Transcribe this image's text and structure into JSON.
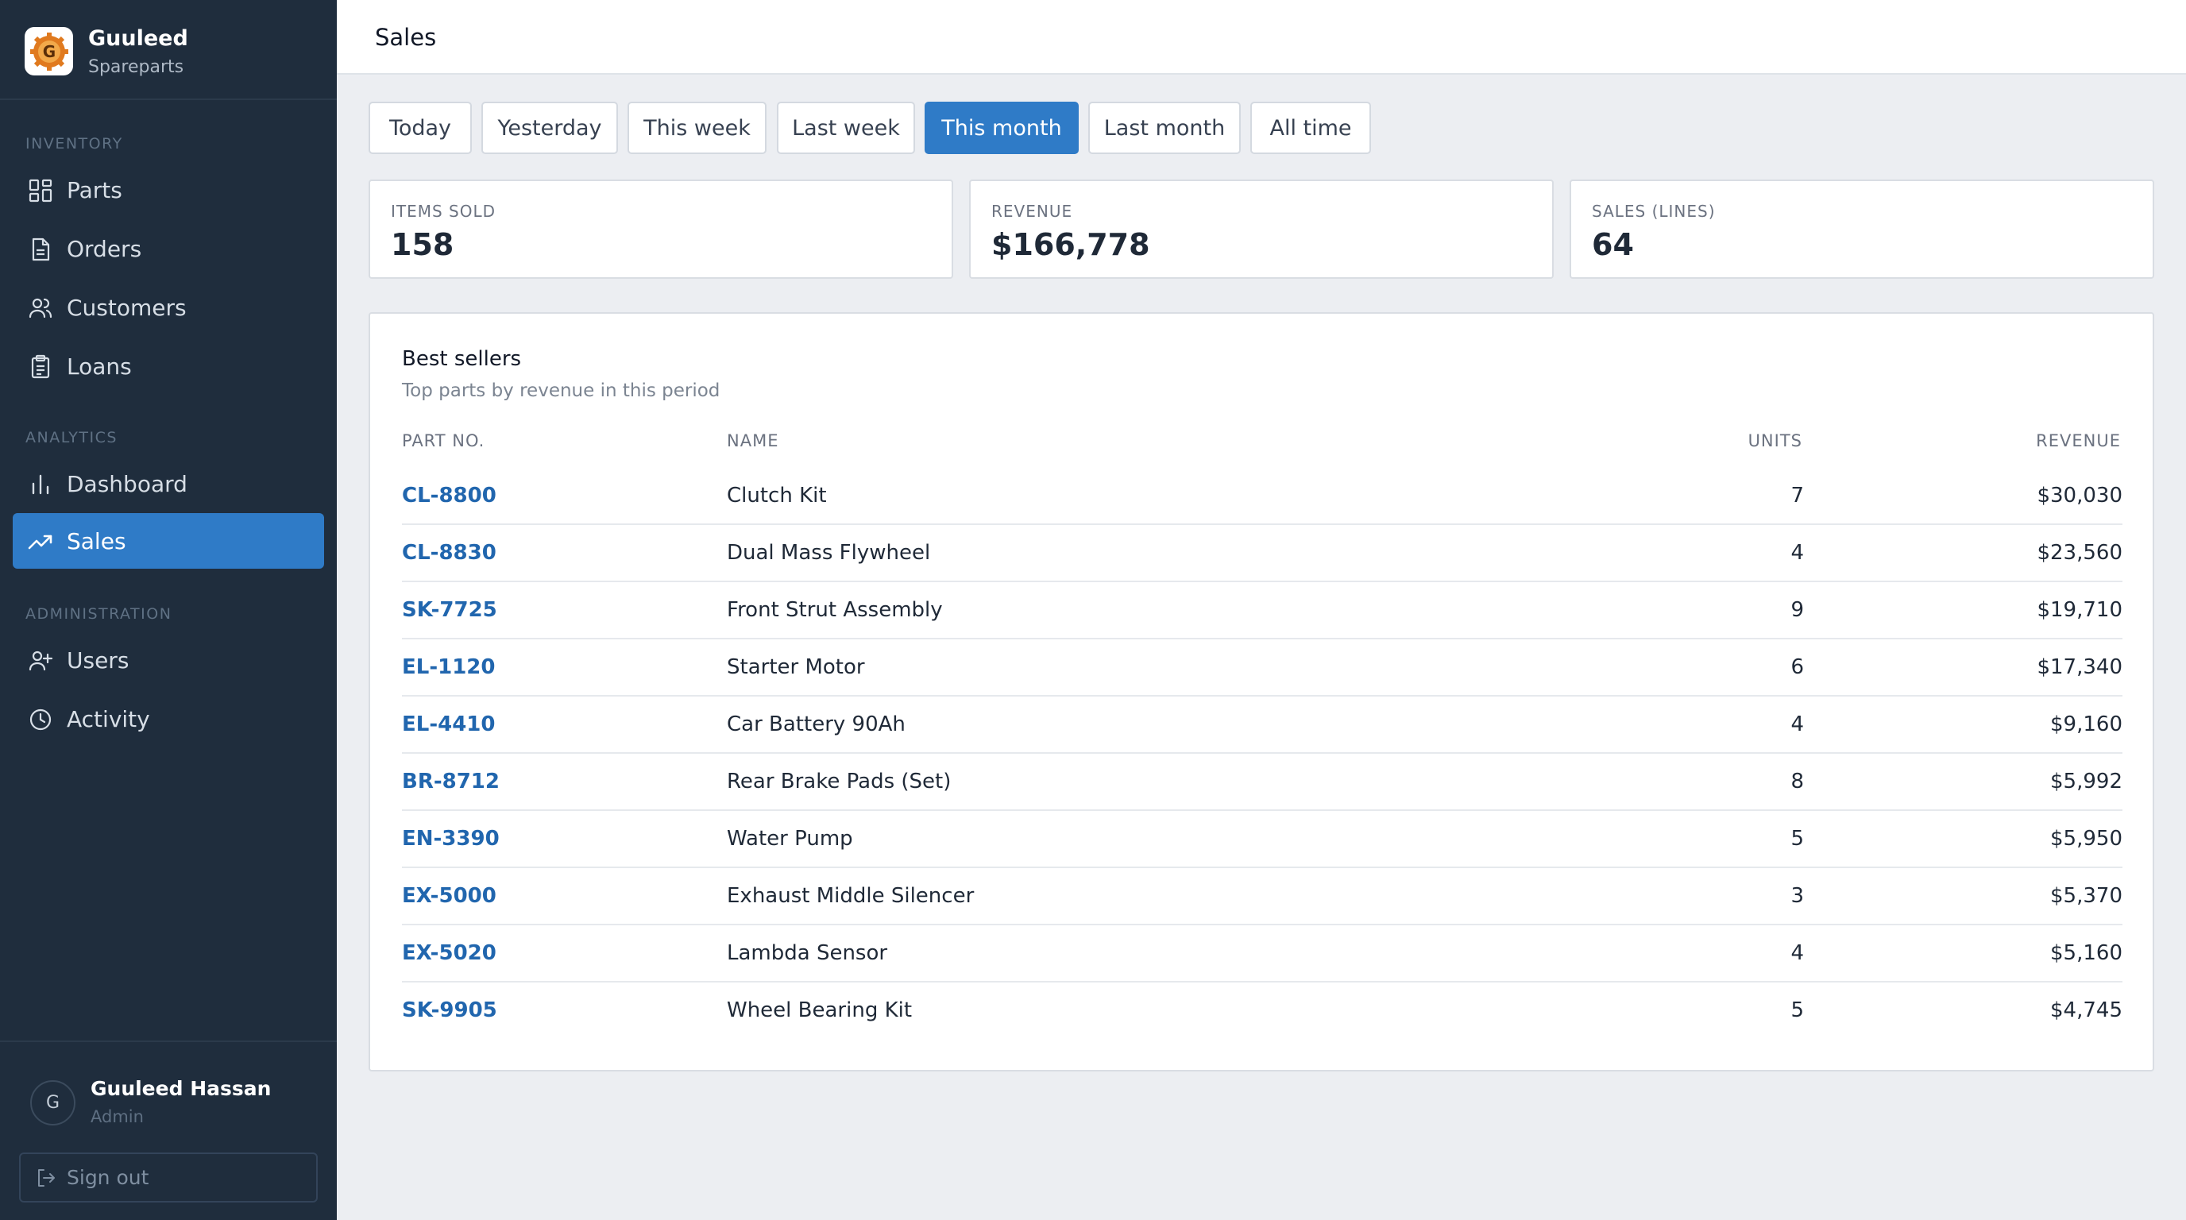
{
  "brand": {
    "name": "Guuleed",
    "subtitle": "Spareparts",
    "logo_letter": "G"
  },
  "sidebar": {
    "sections": [
      {
        "label": "INVENTORY"
      },
      {
        "label": "ANALYTICS"
      },
      {
        "label": "ADMINISTRATION"
      }
    ],
    "items": [
      {
        "label": "Parts",
        "icon": "grid-icon"
      },
      {
        "label": "Orders",
        "icon": "document-icon"
      },
      {
        "label": "Customers",
        "icon": "users-icon"
      },
      {
        "label": "Loans",
        "icon": "clipboard-icon"
      },
      {
        "label": "Dashboard",
        "icon": "bar-chart-icon"
      },
      {
        "label": "Sales",
        "icon": "trending-up-icon",
        "active": true
      },
      {
        "label": "Users",
        "icon": "user-plus-icon"
      },
      {
        "label": "Activity",
        "icon": "clock-icon"
      }
    ]
  },
  "user": {
    "initial": "G",
    "name": "Guuleed Hassan",
    "role": "Admin",
    "signout_label": "Sign out"
  },
  "header": {
    "title": "Sales"
  },
  "filters": {
    "options": [
      "Today",
      "Yesterday",
      "This week",
      "Last week",
      "This month",
      "Last month",
      "All time"
    ],
    "selected": "This month"
  },
  "stats": [
    {
      "label": "ITEMS SOLD",
      "value": "158"
    },
    {
      "label": "REVENUE",
      "value": "$166,778"
    },
    {
      "label": "SALES (LINES)",
      "value": "64"
    }
  ],
  "best_sellers": {
    "title": "Best sellers",
    "subtitle": "Top parts by revenue in this period",
    "columns": {
      "part": "PART NO.",
      "name": "NAME",
      "units": "UNITS",
      "revenue": "REVENUE"
    },
    "rows": [
      {
        "part": "CL-8800",
        "name": "Clutch Kit",
        "units": "7",
        "revenue": "$30,030"
      },
      {
        "part": "CL-8830",
        "name": "Dual Mass Flywheel",
        "units": "4",
        "revenue": "$23,560"
      },
      {
        "part": "SK-7725",
        "name": "Front Strut Assembly",
        "units": "9",
        "revenue": "$19,710"
      },
      {
        "part": "EL-1120",
        "name": "Starter Motor",
        "units": "6",
        "revenue": "$17,340"
      },
      {
        "part": "EL-4410",
        "name": "Car Battery 90Ah",
        "units": "4",
        "revenue": "$9,160"
      },
      {
        "part": "BR-8712",
        "name": "Rear Brake Pads (Set)",
        "units": "8",
        "revenue": "$5,992"
      },
      {
        "part": "EN-3390",
        "name": "Water Pump",
        "units": "5",
        "revenue": "$5,950"
      },
      {
        "part": "EX-5000",
        "name": "Exhaust Middle Silencer",
        "units": "3",
        "revenue": "$5,370"
      },
      {
        "part": "EX-5020",
        "name": "Lambda Sensor",
        "units": "4",
        "revenue": "$5,160"
      },
      {
        "part": "SK-9905",
        "name": "Wheel Bearing Kit",
        "units": "5",
        "revenue": "$4,745"
      }
    ]
  },
  "colors": {
    "sidebar_bg": "#1f2d3d",
    "accent": "#2f7bc7",
    "link": "#2166ae",
    "page_bg": "#eceef2"
  }
}
